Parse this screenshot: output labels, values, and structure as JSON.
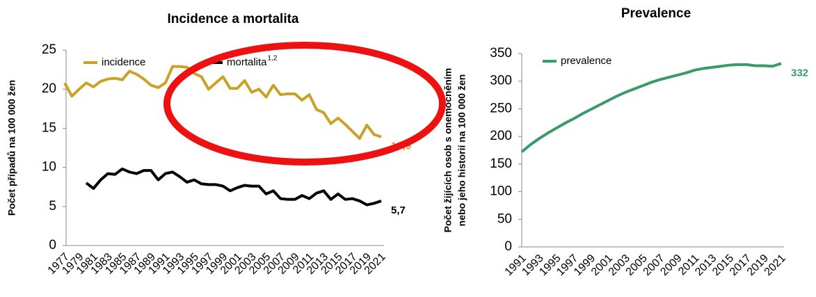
{
  "chart_data": [
    {
      "type": "line",
      "title": "Incidence a mortalita",
      "y_label": "Počet případů na 100 000 žen",
      "categories": [
        "1977",
        null,
        "1979",
        null,
        "1981",
        null,
        "1983",
        null,
        "1985",
        null,
        "1987",
        null,
        "1989",
        null,
        "1991",
        null,
        "1993",
        null,
        "1995",
        null,
        "1997",
        null,
        "1999",
        null,
        "2001",
        null,
        "2003",
        null,
        "2005",
        null,
        "2007",
        null,
        "2009",
        null,
        "2011",
        null,
        "2013",
        null,
        "2015",
        null,
        "2017",
        null,
        "2019",
        null,
        "2021"
      ],
      "series": [
        {
          "name": "incidence",
          "color": "#c9a227",
          "values": [
            20.8,
            19.1,
            20.0,
            20.8,
            20.3,
            21.0,
            21.3,
            21.4,
            21.2,
            22.3,
            21.9,
            21.3,
            20.5,
            20.2,
            20.8,
            22.9,
            22.9,
            22.8,
            22.0,
            21.6,
            20.0,
            20.8,
            21.6,
            20.1,
            20.1,
            21.1,
            19.6,
            20.0,
            19.0,
            20.5,
            19.3,
            19.4,
            19.4,
            18.6,
            19.3,
            17.4,
            17.0,
            15.6,
            16.3,
            15.5,
            14.6,
            13.7,
            15.4,
            14.2,
            13.9
          ],
          "value_labels": [
            null,
            null,
            null,
            null,
            null,
            null,
            null,
            null,
            null,
            null,
            null,
            null,
            null,
            null,
            null,
            null,
            null,
            null,
            null,
            null,
            null,
            null,
            null,
            null,
            null,
            null,
            null,
            null,
            null,
            null,
            null,
            null,
            null,
            null,
            null,
            null,
            null,
            null,
            null,
            null,
            null,
            null,
            null,
            null,
            "13,9"
          ]
        },
        {
          "name": "mortalita",
          "name_superscript": "1,2",
          "color": "#000000",
          "values": [
            null,
            null,
            null,
            8.0,
            7.3,
            8.4,
            9.2,
            9.1,
            9.8,
            9.4,
            9.2,
            9.6,
            9.6,
            8.4,
            9.2,
            9.4,
            8.8,
            8.1,
            8.4,
            7.9,
            7.8,
            7.8,
            7.6,
            7.0,
            7.4,
            7.7,
            7.6,
            7.6,
            6.6,
            7.0,
            6.0,
            5.9,
            5.9,
            6.4,
            6.0,
            6.7,
            7.0,
            5.9,
            6.6,
            5.9,
            6.0,
            5.7,
            5.2,
            5.4,
            5.7
          ],
          "value_labels": [
            null,
            null,
            null,
            null,
            null,
            null,
            null,
            null,
            null,
            null,
            null,
            null,
            null,
            null,
            null,
            null,
            null,
            null,
            null,
            null,
            null,
            null,
            null,
            null,
            null,
            null,
            null,
            null,
            null,
            null,
            null,
            null,
            null,
            null,
            null,
            null,
            null,
            null,
            null,
            null,
            null,
            null,
            null,
            null,
            "5,7"
          ]
        }
      ],
      "ylim": [
        0,
        25
      ],
      "yticks": [
        0,
        5,
        10,
        15,
        20,
        25
      ],
      "grid": false
    },
    {
      "type": "line",
      "title": "Prevalence",
      "y_label": [
        "Počet žijících osob s onemocněním",
        "nebo jeho historií na 100 000 žen"
      ],
      "categories": [
        "1991",
        null,
        "1993",
        null,
        "1995",
        null,
        "1997",
        null,
        "1999",
        null,
        "2001",
        null,
        "2003",
        null,
        "2005",
        null,
        "2007",
        null,
        "2009",
        null,
        "2011",
        null,
        "2013",
        null,
        "2015",
        null,
        "2017",
        null,
        "2019",
        null,
        "2021"
      ],
      "series": [
        {
          "name": "prevalence",
          "color": "#3a9a6a",
          "values": [
            172,
            185,
            196,
            206,
            215,
            224,
            232,
            241,
            249,
            257,
            265,
            273,
            280,
            286,
            292,
            298,
            303,
            307,
            311,
            315,
            320,
            323,
            325,
            327,
            329,
            330,
            330,
            328,
            328,
            327,
            332
          ],
          "value_labels": [
            null,
            null,
            null,
            null,
            null,
            null,
            null,
            null,
            null,
            null,
            null,
            null,
            null,
            null,
            null,
            null,
            null,
            null,
            null,
            null,
            null,
            null,
            null,
            null,
            null,
            null,
            null,
            null,
            null,
            null,
            "332"
          ]
        }
      ],
      "ylim": [
        0,
        350
      ],
      "yticks": [
        0,
        50,
        100,
        150,
        200,
        250,
        300,
        350
      ],
      "grid": false
    }
  ]
}
